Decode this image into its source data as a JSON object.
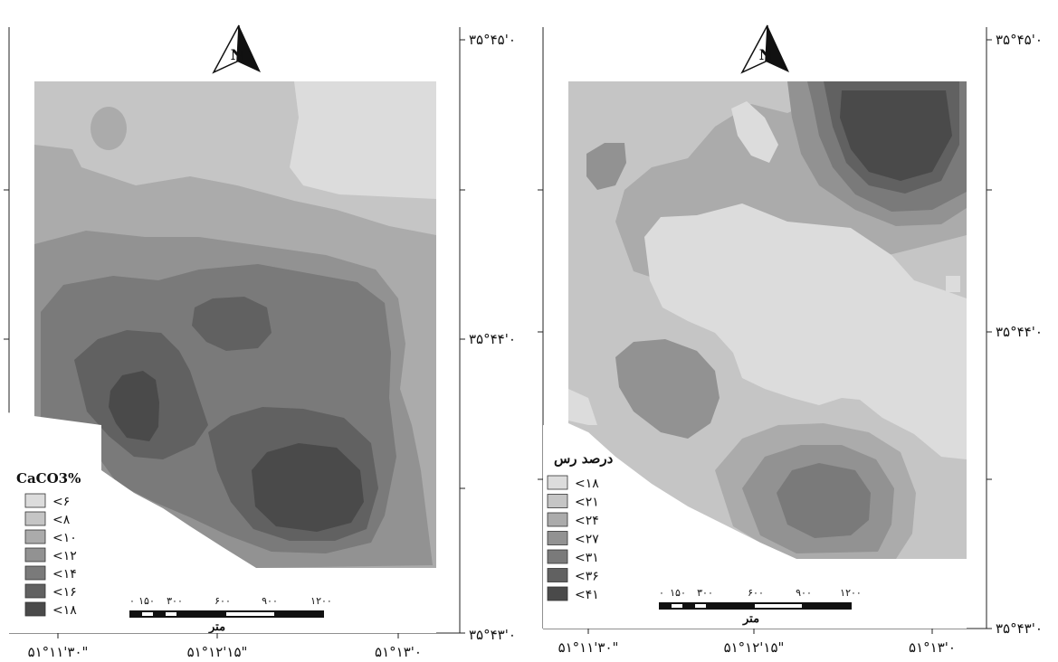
{
  "map_left": {
    "legend_title": "CaCO3%",
    "legend": [
      {
        "label": "<۶",
        "color": "#dcdcdc"
      },
      {
        "label": "<۸",
        "color": "#c5c5c5"
      },
      {
        "label": "<۱۰",
        "color": "#ababab"
      },
      {
        "label": "<۱۲",
        "color": "#929292"
      },
      {
        "label": "<۱۴",
        "color": "#7a7a7a"
      },
      {
        "label": "<۱۶",
        "color": "#616161"
      },
      {
        "label": "<۱۸",
        "color": "#4a4a4a"
      }
    ],
    "scale_ticks": [
      "۰",
      "۱۵۰",
      "۳۰۰",
      "۶۰۰",
      "۹۰۰",
      "۱۲۰۰"
    ],
    "scale_unit": "متر",
    "lat_labels": [
      "۳۵°۴۵'۰",
      "۳۵°۴۴'۰",
      "۳۵°۴۳'۰"
    ],
    "lon_labels": [
      "۵۱°۱۱'۳۰\"",
      "۵۱°۱۲'۱۵\"",
      "۵۱°۱۳'۰"
    ]
  },
  "map_right": {
    "legend_title": "درصد رس",
    "legend": [
      {
        "label": "<۱۸",
        "color": "#dcdcdc"
      },
      {
        "label": "<۲۱",
        "color": "#c5c5c5"
      },
      {
        "label": "<۲۴",
        "color": "#ababab"
      },
      {
        "label": "<۲۷",
        "color": "#929292"
      },
      {
        "label": "<۳۱",
        "color": "#7a7a7a"
      },
      {
        "label": "<۳۶",
        "color": "#616161"
      },
      {
        "label": "<۴۱",
        "color": "#4a4a4a"
      }
    ],
    "scale_ticks": [
      "۰",
      "۱۵۰",
      "۳۰۰",
      "۶۰۰",
      "۹۰۰",
      "۱۲۰۰"
    ],
    "scale_unit": "متر",
    "lat_labels": [
      "۳۵°۴۵'۰",
      "۳۵°۴۴'۰",
      "۳۵°۴۳'۰"
    ],
    "lon_labels": [
      "۵۱°۱۱'۳۰\"",
      "۵۱°۱۲'۱۵\"",
      "۵۱°۱۳'۰"
    ]
  },
  "north_arrow_icon": "north-arrow-icon"
}
